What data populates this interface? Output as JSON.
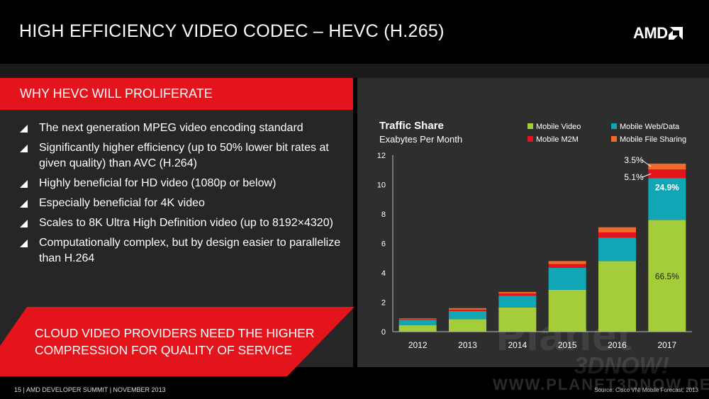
{
  "slide": {
    "title": "HIGH EFFICIENCY VIDEO CODEC – HEVC (H.265)",
    "logo_text": "AMD",
    "section_header": "WHY HEVC WILL PROLIFERATE",
    "bullets": [
      "The next generation MPEG video encoding standard",
      "Significantly higher efficiency (up to 50% lower bit rates at given quality) than AVC (H.264)",
      "Highly beneficial for HD video (1080p or below)",
      "Especially beneficial for 4K video",
      "Scales to 8K Ultra High Definition video (up to 8192×4320)",
      "Computationally complex, but by design easier to parallelize than H.264"
    ],
    "callout": "CLOUD VIDEO PROVIDERS NEED THE HIGHER COMPRESSION FOR QUALITY OF SERVICE",
    "footer": "15 | AMD DEVELOPER SUMMIT | NOVEMBER 2013",
    "source": "Source: Cisco VNI Mobile Forecast, 2013",
    "watermark": {
      "line1": "Planet",
      "line2": "3DNOW!",
      "line3": "WWW.PLANET3DNOW.DE"
    },
    "colors": {
      "accent_red": "#e3141b",
      "mobile_video": "#a5cd39",
      "mobile_web_data": "#10a6b6",
      "mobile_m2m": "#e3141b",
      "mobile_file_sharing": "#f26a2a"
    }
  },
  "chart_data": {
    "type": "bar",
    "stacked": true,
    "title": "Traffic Share",
    "subtitle": "Exabytes Per Month",
    "categories": [
      "2012",
      "2013",
      "2014",
      "2015",
      "2016",
      "2017"
    ],
    "ylim": [
      0,
      12
    ],
    "yticks": [
      0,
      2,
      4,
      6,
      8,
      10,
      12
    ],
    "grid": false,
    "legend_position": "top-right",
    "series": [
      {
        "name": "Mobile Video",
        "color": "#a5cd39",
        "values": [
          0.45,
          0.85,
          1.65,
          2.85,
          4.8,
          7.6
        ]
      },
      {
        "name": "Mobile Web/Data",
        "color": "#10a6b6",
        "values": [
          0.35,
          0.55,
          0.8,
          1.5,
          1.6,
          2.85
        ]
      },
      {
        "name": "Mobile M2M",
        "color": "#e3141b",
        "values": [
          0.05,
          0.1,
          0.15,
          0.25,
          0.35,
          0.58
        ]
      },
      {
        "name": "Mobile File Sharing",
        "color": "#f26a2a",
        "values": [
          0.05,
          0.1,
          0.1,
          0.2,
          0.35,
          0.4
        ]
      }
    ],
    "annotations": [
      {
        "category": "2017",
        "series": "Mobile File Sharing",
        "text": "3.5%"
      },
      {
        "category": "2017",
        "series": "Mobile M2M",
        "text": "5.1%"
      },
      {
        "category": "2017",
        "series": "Mobile Web/Data",
        "text": "24.9%"
      },
      {
        "category": "2017",
        "series": "Mobile Video",
        "text": "66.5%"
      }
    ]
  }
}
